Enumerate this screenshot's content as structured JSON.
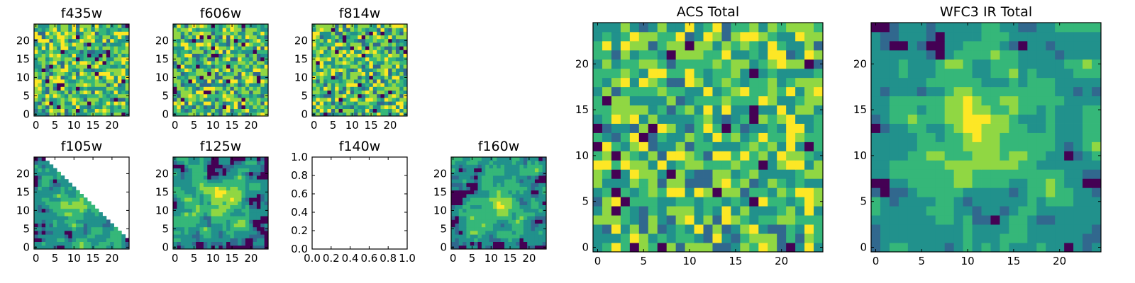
{
  "chart_data": [
    {
      "type": "heatmap",
      "title": "f435w",
      "xticks": [
        "0",
        "5",
        "10",
        "15",
        "20"
      ],
      "yticks": [
        "0",
        "5",
        "10",
        "15",
        "20"
      ],
      "xlim": [
        -0.5,
        24.5
      ],
      "ylim": [
        -0.5,
        24.5
      ],
      "grid": false
    },
    {
      "type": "heatmap",
      "title": "f606w",
      "xticks": [
        "0",
        "5",
        "10",
        "15",
        "20"
      ],
      "yticks": [
        "0",
        "5",
        "10",
        "15",
        "20"
      ],
      "xlim": [
        -0.5,
        24.5
      ],
      "ylim": [
        -0.5,
        24.5
      ],
      "grid": false
    },
    {
      "type": "heatmap",
      "title": "f814w",
      "xticks": [
        "0",
        "5",
        "10",
        "15",
        "20"
      ],
      "yticks": [
        "0",
        "5",
        "10",
        "15",
        "20"
      ],
      "xlim": [
        -0.5,
        24.5
      ],
      "ylim": [
        -0.5,
        24.5
      ],
      "grid": false
    },
    {
      "type": "heatmap",
      "title": "f105w",
      "xticks": [
        "0",
        "5",
        "10",
        "15",
        "20"
      ],
      "yticks": [
        "0",
        "5",
        "10",
        "15",
        "20"
      ],
      "xlim": [
        -0.5,
        24.5
      ],
      "ylim": [
        -0.5,
        24.5
      ],
      "grid": false,
      "coverage": "lower-left triangle"
    },
    {
      "type": "heatmap",
      "title": "f125w",
      "xticks": [
        "0",
        "5",
        "10",
        "15",
        "20"
      ],
      "yticks": [
        "0",
        "5",
        "10",
        "15",
        "20"
      ],
      "xlim": [
        -0.5,
        24.5
      ],
      "ylim": [
        -0.5,
        24.5
      ],
      "grid": false
    },
    {
      "type": "heatmap",
      "title": "f140w",
      "xticks": [
        "0.0",
        "0.2",
        "0.4",
        "0.6",
        "0.8",
        "1.0"
      ],
      "yticks": [
        "0.0",
        "0.2",
        "0.4",
        "0.6",
        "0.8",
        "1.0"
      ],
      "xlim": [
        0,
        1
      ],
      "ylim": [
        0,
        1
      ],
      "grid": false,
      "empty": true
    },
    {
      "type": "heatmap",
      "title": "f160w",
      "xticks": [
        "0",
        "5",
        "10",
        "15",
        "20"
      ],
      "yticks": [
        "0",
        "5",
        "10",
        "15",
        "20"
      ],
      "xlim": [
        -0.5,
        24.5
      ],
      "ylim": [
        -0.5,
        24.5
      ],
      "grid": false
    },
    {
      "type": "heatmap",
      "title": "ACS Total",
      "xticks": [
        "0",
        "5",
        "10",
        "15",
        "20"
      ],
      "yticks": [
        "0",
        "5",
        "10",
        "15",
        "20"
      ],
      "xlim": [
        -0.5,
        24.5
      ],
      "ylim": [
        -0.5,
        24.5
      ],
      "grid": false
    },
    {
      "type": "heatmap",
      "title": "WFC3 IR Total",
      "xticks": [
        "0",
        "5",
        "10",
        "15",
        "20"
      ],
      "yticks": [
        "0",
        "5",
        "10",
        "15",
        "20"
      ],
      "xlim": [
        -0.5,
        24.5
      ],
      "ylim": [
        -0.5,
        24.5
      ],
      "grid": false
    }
  ],
  "colormap": [
    "#440154",
    "#31688e",
    "#21918c",
    "#35b779",
    "#90d743",
    "#fde725"
  ]
}
